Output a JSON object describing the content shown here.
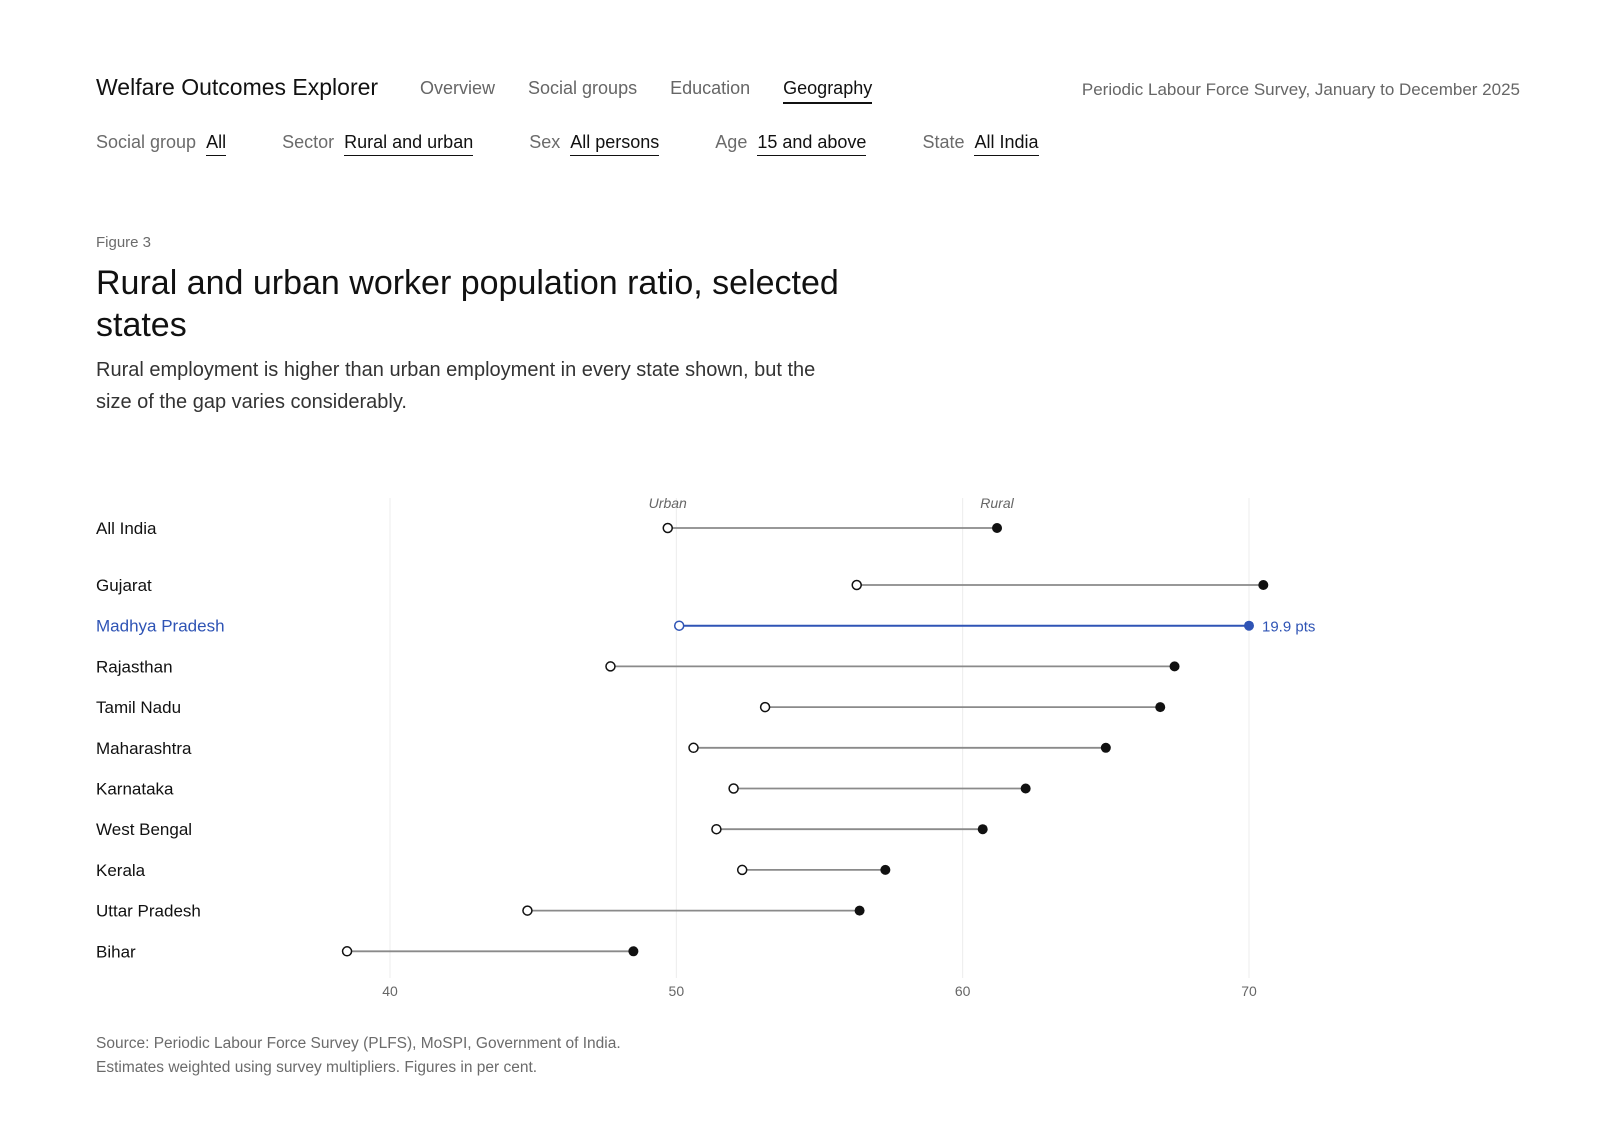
{
  "header": {
    "app_title": "Welfare Outcomes Explorer",
    "nav": [
      {
        "label": "Overview",
        "active": false
      },
      {
        "label": "Social groups",
        "active": false
      },
      {
        "label": "Education",
        "active": false
      },
      {
        "label": "Geography",
        "active": true
      }
    ],
    "survey": "Periodic Labour Force Survey, January to December 2025"
  },
  "filters": [
    {
      "label": "Social group",
      "value": "All"
    },
    {
      "label": "Sector",
      "value": "Rural and urban"
    },
    {
      "label": "Sex",
      "value": "All persons"
    },
    {
      "label": "Age",
      "value": "15 and above"
    },
    {
      "label": "State",
      "value": "All India"
    }
  ],
  "figure": {
    "number": "Figure 3",
    "title": "Rural and urban worker population ratio, selected states",
    "subtitle": "Rural employment is higher than urban employment in every state shown, but the size of the gap varies considerably."
  },
  "chart_data": {
    "type": "dumbbell",
    "series_labels": {
      "urban": "Urban",
      "rural": "Rural"
    },
    "xlim": [
      35,
      75
    ],
    "xticks": [
      40,
      50,
      60,
      70
    ],
    "grid": true,
    "highlight_color": "#2f54b5",
    "rows": [
      {
        "label": "All India",
        "urban": 49.7,
        "rural": 61.2
      },
      {
        "label": "Gujarat",
        "urban": 56.3,
        "rural": 70.5
      },
      {
        "label": "Madhya Pradesh",
        "urban": 50.1,
        "rural": 70.0,
        "highlight": true,
        "annotation": "19.9 pts"
      },
      {
        "label": "Rajasthan",
        "urban": 47.7,
        "rural": 67.4
      },
      {
        "label": "Tamil Nadu",
        "urban": 53.1,
        "rural": 66.9
      },
      {
        "label": "Maharashtra",
        "urban": 50.6,
        "rural": 65.0
      },
      {
        "label": "Karnataka",
        "urban": 52.0,
        "rural": 62.2
      },
      {
        "label": "West Bengal",
        "urban": 51.4,
        "rural": 60.7
      },
      {
        "label": "Kerala",
        "urban": 52.3,
        "rural": 57.3
      },
      {
        "label": "Uttar Pradesh",
        "urban": 44.8,
        "rural": 56.4
      },
      {
        "label": "Bihar",
        "urban": 38.5,
        "rural": 48.5
      }
    ]
  },
  "source": {
    "line1": "Source: Periodic Labour Force Survey (PLFS), MoSPI, Government of India.",
    "line2": "Estimates weighted using survey multipliers. Figures in per cent."
  }
}
